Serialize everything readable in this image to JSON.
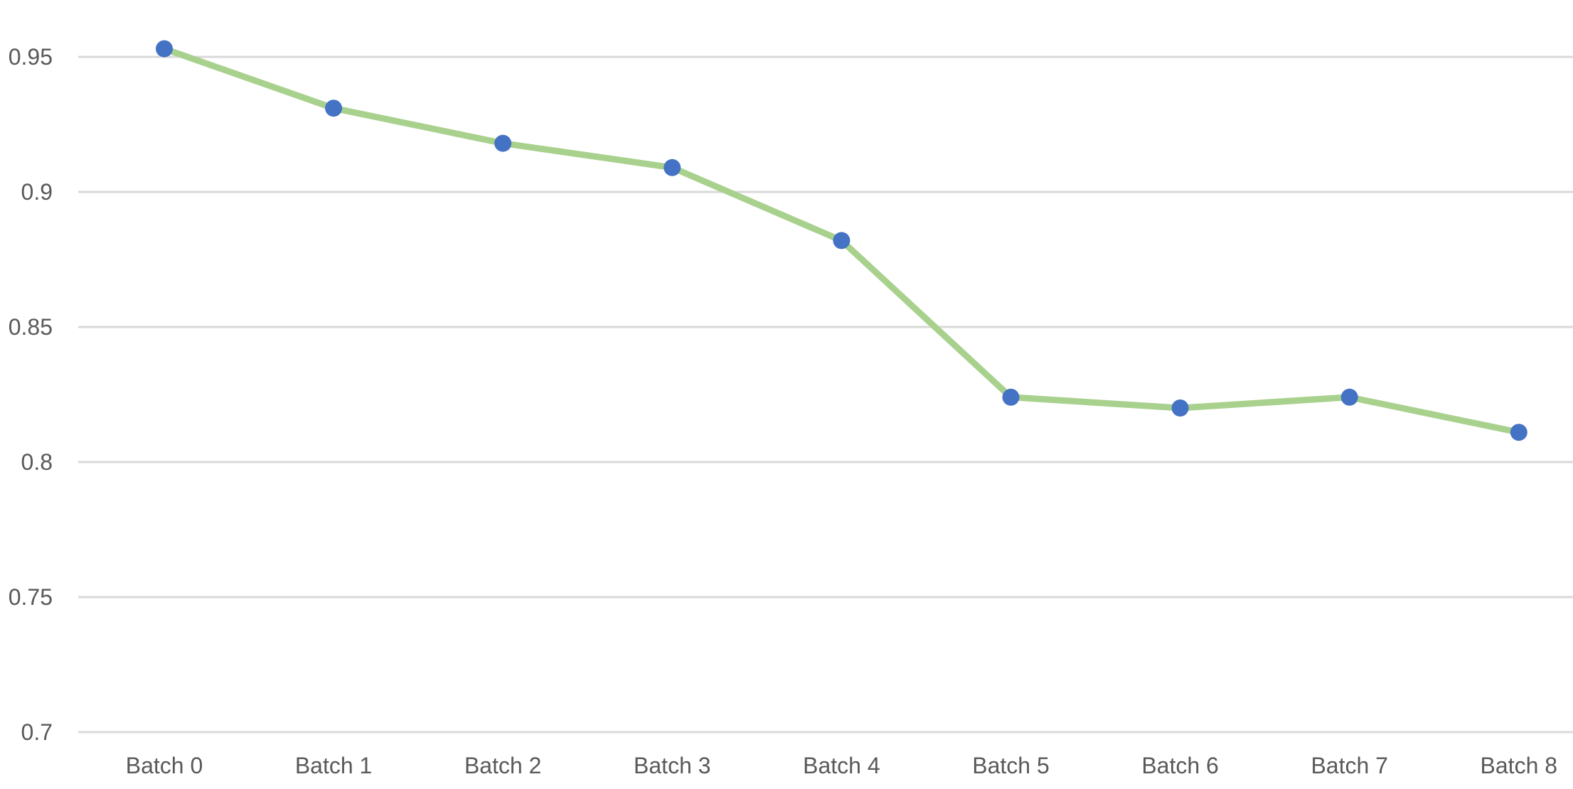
{
  "chart_data": {
    "type": "line",
    "categories": [
      "Batch 0",
      "Batch 1",
      "Batch 2",
      "Batch 3",
      "Batch 4",
      "Batch 5",
      "Batch 6",
      "Batch 7",
      "Batch 8"
    ],
    "series": [
      {
        "values": [
          0.953,
          0.931,
          0.918,
          0.909,
          0.882,
          0.824,
          0.82,
          0.824,
          0.811
        ],
        "line_color": "#a9d18e",
        "marker_color": "#4472c4"
      }
    ],
    "ylim": [
      0.7,
      0.95
    ],
    "yticks": [
      0.7,
      0.75,
      0.8,
      0.85,
      0.9,
      0.95
    ],
    "ytick_labels": [
      "0.7",
      "0.75",
      "0.8",
      "0.85",
      "0.9",
      "0.95"
    ],
    "grid": true,
    "gridline_color": "#d9d9d9",
    "title": "",
    "xlabel": "",
    "ylabel": ""
  }
}
